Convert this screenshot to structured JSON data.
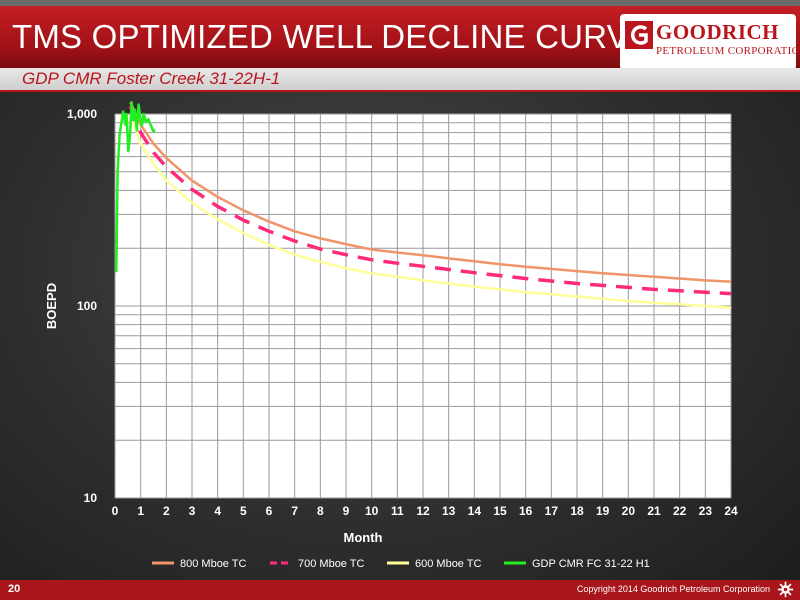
{
  "slide": {
    "title": "TMS OPTIMIZED WELL DECLINE CURVE",
    "subtitle": "GDP CMR Foster Creek 31-22H-1",
    "page_number": "20",
    "copyright": "Copyright 2014 Goodrich Petroleum Corporation",
    "logo": {
      "name": "GOODRICH",
      "sub": "PETROLEUM CORPORATION",
      "icon": "goodrich-g-logo-icon"
    },
    "footer_icon": "gear-icon"
  },
  "colors": {
    "title_bar": "#b0161b",
    "brand_red": "#b8161c",
    "plot_background": "#ffffff",
    "grid": "#9a9a9a"
  },
  "chart_data": {
    "type": "line",
    "scale": {
      "y": "log"
    },
    "ylim": [
      10,
      1000
    ],
    "xlim": [
      0,
      24
    ],
    "xlabel": "Month",
    "ylabel": "BOEPD",
    "x_ticks": [
      "0",
      "1",
      "2",
      "3",
      "4",
      "5",
      "6",
      "7",
      "8",
      "9",
      "10",
      "11",
      "12",
      "13",
      "14",
      "15",
      "16",
      "17",
      "18",
      "19",
      "20",
      "21",
      "22",
      "23",
      "24"
    ],
    "y_ticks": [
      "10",
      "100",
      "1,000"
    ],
    "grid": true,
    "legend_position": "bottom",
    "series": [
      {
        "name": "800 Mboe TC",
        "color": "#f0956a",
        "style": "solid",
        "points": [
          [
            0.6,
            1150
          ],
          [
            1,
            880
          ],
          [
            1.5,
            700
          ],
          [
            2,
            590
          ],
          [
            3,
            450
          ],
          [
            4,
            370
          ],
          [
            5,
            315
          ],
          [
            6,
            275
          ],
          [
            7,
            245
          ],
          [
            8,
            225
          ],
          [
            9,
            210
          ],
          [
            10,
            197
          ],
          [
            11,
            190
          ],
          [
            12,
            184
          ],
          [
            13,
            177
          ],
          [
            14,
            171
          ],
          [
            15,
            165
          ],
          [
            16,
            160
          ],
          [
            17,
            156
          ],
          [
            18,
            152
          ],
          [
            19,
            148
          ],
          [
            20,
            145
          ],
          [
            21,
            142
          ],
          [
            22,
            139
          ],
          [
            23,
            136
          ],
          [
            24,
            134
          ]
        ]
      },
      {
        "name": "700 Mboe TC",
        "color": "#ff2a7a",
        "style": "dashed",
        "points": [
          [
            0.6,
            1100
          ],
          [
            1,
            800
          ],
          [
            1.5,
            630
          ],
          [
            2,
            530
          ],
          [
            3,
            405
          ],
          [
            4,
            330
          ],
          [
            5,
            280
          ],
          [
            6,
            245
          ],
          [
            7,
            218
          ],
          [
            8,
            198
          ],
          [
            9,
            185
          ],
          [
            10,
            174
          ],
          [
            11,
            167
          ],
          [
            12,
            161
          ],
          [
            13,
            155
          ],
          [
            14,
            149
          ],
          [
            15,
            144
          ],
          [
            16,
            139
          ],
          [
            17,
            135
          ],
          [
            18,
            131
          ],
          [
            19,
            128
          ],
          [
            20,
            125
          ],
          [
            21,
            122
          ],
          [
            22,
            120
          ],
          [
            23,
            118
          ],
          [
            24,
            116
          ]
        ]
      },
      {
        "name": "600 Mboe TC",
        "color": "#ffff99",
        "style": "solid",
        "points": [
          [
            0.6,
            1000
          ],
          [
            1,
            700
          ],
          [
            1.5,
            550
          ],
          [
            2,
            450
          ],
          [
            3,
            345
          ],
          [
            4,
            283
          ],
          [
            5,
            240
          ],
          [
            6,
            208
          ],
          [
            7,
            185
          ],
          [
            8,
            170
          ],
          [
            9,
            157
          ],
          [
            10,
            148
          ],
          [
            11,
            142
          ],
          [
            12,
            136
          ],
          [
            13,
            131
          ],
          [
            14,
            126
          ],
          [
            15,
            122
          ],
          [
            16,
            118
          ],
          [
            17,
            115
          ],
          [
            18,
            112
          ],
          [
            19,
            109
          ],
          [
            20,
            106
          ],
          [
            21,
            104
          ],
          [
            22,
            102
          ],
          [
            23,
            100
          ],
          [
            24,
            98
          ]
        ]
      },
      {
        "name": "GDP CMR FC 31-22 H1",
        "color": "#22ee22",
        "style": "solid",
        "points": [
          [
            0.05,
            150
          ],
          [
            0.1,
            500
          ],
          [
            0.18,
            780
          ],
          [
            0.25,
            900
          ],
          [
            0.32,
            1030
          ],
          [
            0.4,
            880
          ],
          [
            0.45,
            1000
          ],
          [
            0.52,
            640
          ],
          [
            0.58,
            760
          ],
          [
            0.65,
            1150
          ],
          [
            0.7,
            930
          ],
          [
            0.78,
            1050
          ],
          [
            0.85,
            820
          ],
          [
            0.92,
            1120
          ],
          [
            0.98,
            960
          ],
          [
            1.05,
            870
          ],
          [
            1.12,
            1000
          ],
          [
            1.2,
            910
          ],
          [
            1.3,
            940
          ],
          [
            1.4,
            870
          ],
          [
            1.5,
            810
          ],
          [
            1.55,
            830
          ]
        ]
      }
    ]
  }
}
